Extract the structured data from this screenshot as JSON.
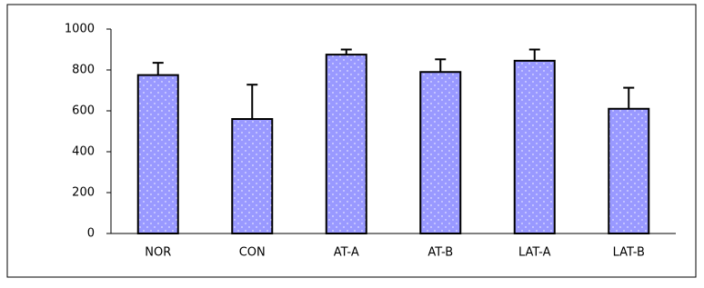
{
  "chart_data": {
    "type": "bar",
    "categories": [
      "NOR",
      "CON",
      "AT-A",
      "AT-B",
      "LAT-A",
      "LAT-B"
    ],
    "values": [
      775,
      560,
      875,
      790,
      845,
      610
    ],
    "errors": [
      60,
      168,
      25,
      62,
      55,
      103
    ],
    "color": "#9999ff",
    "ylim": [
      0,
      1000
    ],
    "yticks": [
      0,
      200,
      400,
      600,
      800,
      1000
    ]
  }
}
